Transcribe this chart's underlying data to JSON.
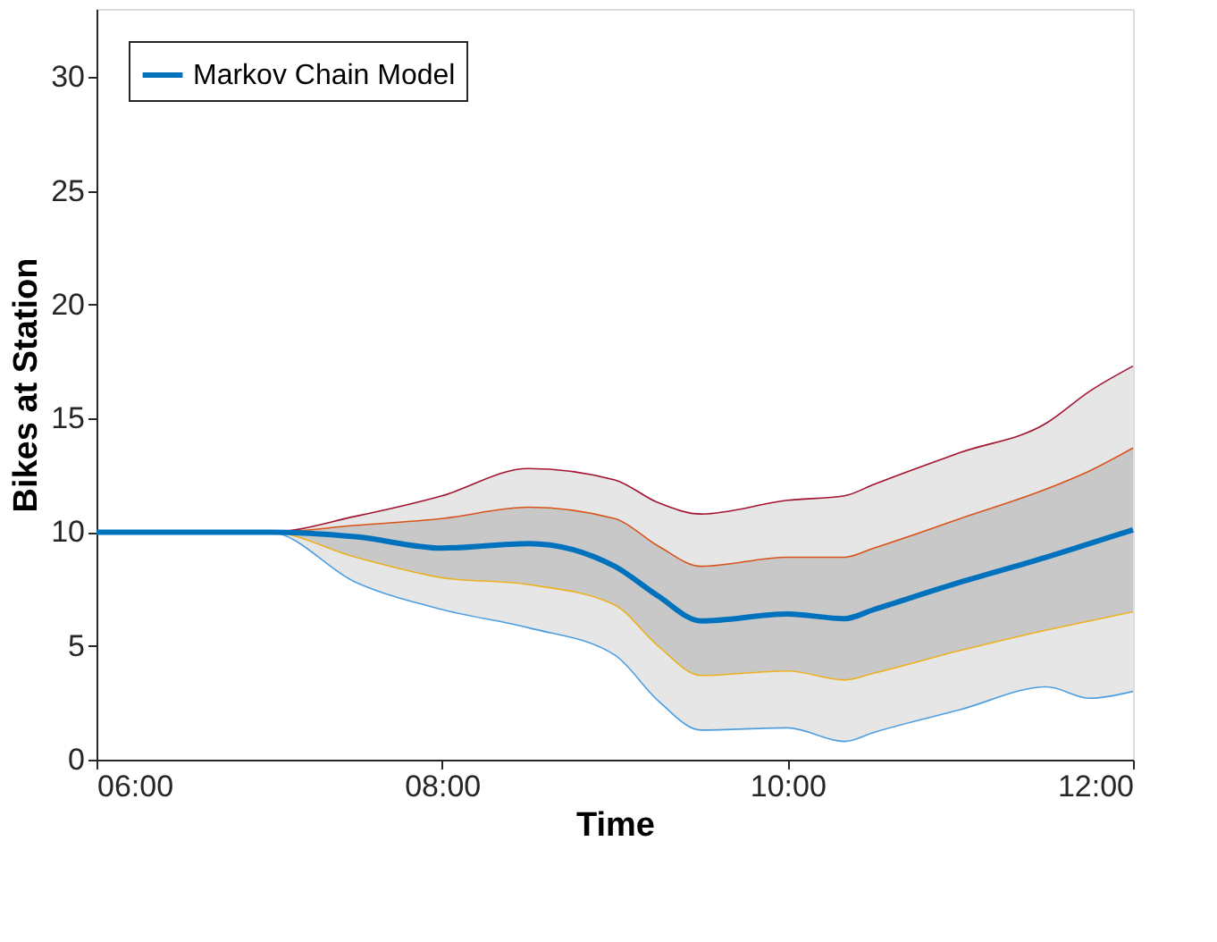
{
  "chart_data": {
    "type": "line",
    "xlabel": "Time",
    "ylabel": "Bikes at Station",
    "x": [
      6,
      7,
      7.5,
      8,
      8.5,
      9,
      9.25,
      9.5,
      10,
      10.33,
      10.5,
      11,
      11.5,
      11.75,
      12
    ],
    "series": [
      {
        "name": "Markov Chain Model",
        "color": "#0072bd",
        "values": [
          10,
          10,
          9.8,
          9.3,
          9.5,
          8.5,
          7.2,
          6.1,
          6.4,
          6.2,
          6.6,
          7.8,
          8.9,
          9.5,
          10.1
        ],
        "lower": [
          10,
          10,
          8.9,
          8.0,
          7.7,
          6.8,
          5.0,
          3.7,
          3.9,
          3.5,
          3.8,
          4.8,
          5.7,
          6.1,
          6.5
        ],
        "upper": [
          10,
          10,
          10.3,
          10.6,
          11.1,
          10.6,
          9.4,
          8.5,
          8.9,
          8.9,
          9.3,
          10.6,
          11.9,
          12.7,
          13.7
        ]
      },
      {
        "color": "#a2142f",
        "values": [
          10,
          10,
          10.7,
          11.6,
          12.8,
          12.3,
          11.3,
          10.8,
          11.4,
          11.6,
          12.1,
          13.5,
          14.8,
          16.2,
          17.3
        ],
        "lower": [
          10,
          10,
          7.8,
          6.6,
          5.8,
          4.6,
          2.6,
          1.3,
          1.4,
          0.8,
          1.2,
          2.2,
          3.2,
          2.7,
          3.0
        ],
        "upper": [
          10,
          10,
          10.7,
          11.6,
          12.8,
          12.3,
          11.3,
          10.8,
          11.4,
          11.6,
          12.1,
          13.5,
          14.8,
          16.2,
          17.3
        ]
      },
      {
        "color": "#4d9ee0",
        "values": [
          10,
          10,
          7.8,
          6.6,
          5.8,
          4.6,
          2.6,
          1.3,
          1.4,
          0.8,
          1.2,
          2.2,
          3.2,
          2.7,
          3.0
        ]
      },
      {
        "color": "#d95319",
        "values": [
          10,
          10,
          10.3,
          10.6,
          11.1,
          10.6,
          9.4,
          8.5,
          8.9,
          8.9,
          9.3,
          10.6,
          11.9,
          12.7,
          13.7
        ]
      },
      {
        "color": "#edb120",
        "values": [
          10,
          10,
          8.9,
          8.0,
          7.7,
          6.8,
          5.0,
          3.7,
          3.9,
          3.5,
          3.8,
          4.8,
          5.7,
          6.1,
          6.5
        ]
      }
    ],
    "xlim": [
      6,
      12
    ],
    "xticks": [
      {
        "value": 6,
        "label": "06:00"
      },
      {
        "value": 8,
        "label": "08:00"
      },
      {
        "value": 10,
        "label": "10:00"
      },
      {
        "value": 12,
        "label": "12:00"
      }
    ],
    "ylim": [
      0,
      33
    ],
    "yticks": [
      0,
      5,
      10,
      15,
      20,
      25,
      30
    ],
    "grid": false,
    "legend": "top left",
    "marker": "none",
    "line_style": "solid"
  }
}
